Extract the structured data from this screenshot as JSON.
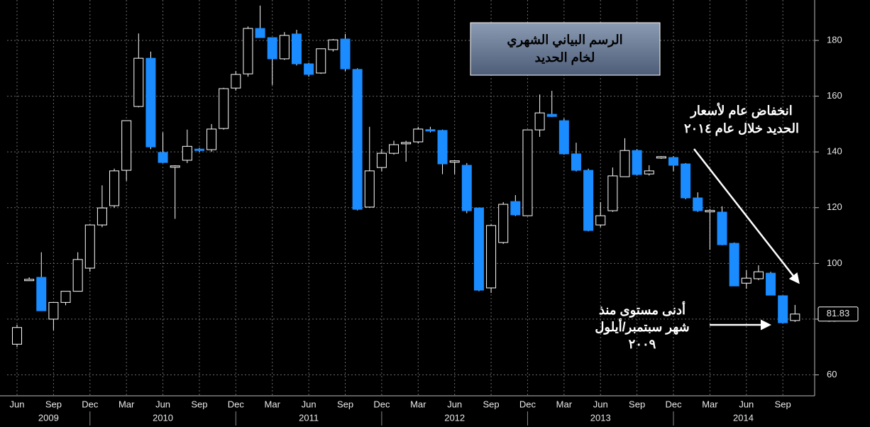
{
  "chart_data": {
    "type": "candlestick",
    "title_lines": [
      "الرسم البياني الشهري",
      "لخام الحديد"
    ],
    "annotations": [
      [
        "انخفاض عام لأسعار",
        "الحديد خلال عام ٢٠١٤"
      ],
      [
        "أدنى مستوى منذ",
        "شهر سبتمبر/أيلول",
        "٢٠٠٩"
      ]
    ],
    "categories": [
      "Jun",
      null,
      null,
      "Sep",
      null,
      null,
      "Dec",
      null,
      null,
      "Mar",
      null,
      null,
      "Jun",
      null,
      null,
      "Sep",
      null,
      null,
      "Dec",
      null,
      null,
      "Mar",
      null,
      null,
      "Jun",
      null,
      null,
      "Sep",
      null,
      null,
      "Dec",
      null,
      null,
      "Mar",
      null,
      null,
      "Jun",
      null,
      null,
      "Sep",
      null,
      null,
      "Dec",
      null,
      null,
      "Mar",
      null,
      null,
      "Jun",
      null,
      null,
      "Sep",
      null,
      null,
      "Dec",
      null,
      null,
      "Mar",
      null,
      null,
      "Jun",
      null,
      null,
      "Sep",
      null
    ],
    "years": [
      "2009",
      "2010",
      "2011",
      "2012",
      "2013",
      "2014"
    ],
    "open": [
      71,
      94,
      95,
      80,
      86,
      90,
      98.3,
      113.8,
      120.7,
      133.4,
      156.3,
      173.6,
      139.8,
      134.7,
      137,
      141,
      140.8,
      148.4,
      162.9,
      168,
      184.3,
      181,
      173.4,
      182.3,
      171.6,
      168.3,
      176.7,
      180.5,
      169.6,
      120.2,
      134.4,
      139.5,
      143,
      143.6,
      148,
      147.7,
      136.5,
      135.2,
      119.9,
      91.2,
      107.5,
      122.2,
      117.1,
      147.9,
      153.5,
      151.2,
      139.3,
      133.4,
      113.8,
      118.9,
      131.1,
      140.5,
      132.1,
      138,
      138,
      135.7,
      123.5,
      118.6,
      118.4,
      107.2,
      92.9,
      94.5,
      96.5,
      88.4,
      79.5
    ],
    "high": [
      78,
      95,
      104,
      86,
      90,
      104,
      114,
      128,
      134,
      151.2,
      182.5,
      176,
      147,
      135.2,
      148,
      141.5,
      150,
      163,
      169,
      185,
      192.5,
      181,
      183,
      183.8,
      172,
      177,
      180.5,
      182.3,
      170,
      149,
      141,
      144,
      144,
      149,
      149,
      148,
      137,
      136,
      120,
      114,
      122,
      124.5,
      148,
      160.6,
      161.9,
      152,
      143.3,
      134,
      122,
      134.4,
      144.9,
      141,
      135.2,
      138.5,
      138.5,
      136,
      125.5,
      119.5,
      120.5,
      107.5,
      97.5,
      99.3,
      97,
      88.5,
      85.1
    ],
    "low": [
      70,
      94,
      83,
      76,
      85,
      90,
      97,
      113,
      120,
      129.6,
      156,
      141,
      136,
      116,
      136,
      140,
      140,
      148,
      162,
      167,
      181,
      164,
      173,
      171,
      167,
      168,
      176,
      169,
      119,
      120,
      133,
      139,
      136.5,
      143,
      147,
      132,
      132,
      118,
      90,
      89.4,
      107,
      117,
      117,
      145.4,
      152.5,
      139,
      133,
      111.5,
      113,
      118.5,
      131,
      131.5,
      131.5,
      137.5,
      133,
      123,
      118.5,
      104.9,
      106.5,
      91.8,
      90.9,
      94,
      88.5,
      78.5,
      79
    ],
    "close": [
      77,
      94.3,
      83,
      86,
      90,
      101.4,
      113.8,
      119.9,
      133.2,
      151.2,
      173.6,
      141.8,
      136.2,
      135,
      142,
      140.5,
      148.2,
      162.7,
      167.8,
      184.3,
      181,
      173.4,
      181.8,
      171.6,
      167.8,
      177,
      180.2,
      169.8,
      119.4,
      133.2,
      139.5,
      142.6,
      143.4,
      148.2,
      147.5,
      135.7,
      136.8,
      118.9,
      90.4,
      113.6,
      121.2,
      117.4,
      147.9,
      154,
      152.7,
      139.3,
      133.4,
      111.8,
      117.1,
      131.4,
      140.5,
      131.9,
      133.2,
      138.3,
      135.2,
      123.5,
      118.9,
      119,
      106.7,
      91.9,
      94.7,
      97,
      88.6,
      78.7,
      81.83
    ],
    "up_color": "#000000",
    "down_color": "#1a8cff",
    "ylim": [
      52.5,
      194.5
    ],
    "yticks": [
      60,
      80,
      100,
      120,
      140,
      160,
      180
    ],
    "grid": true
  }
}
